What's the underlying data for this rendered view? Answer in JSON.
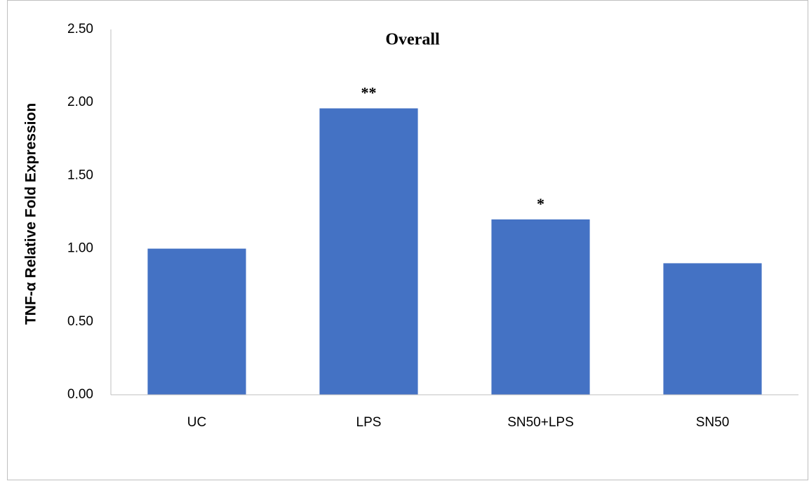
{
  "chart_data": {
    "type": "bar",
    "title": "Overall",
    "y_label": "TNF-α Relative Fold Expression",
    "categories": [
      "UC",
      "LPS",
      "SN50+LPS",
      "SN50"
    ],
    "values": [
      1.0,
      1.96,
      1.2,
      0.9
    ],
    "color": "#4472c4",
    "ylim": [
      0,
      2.5
    ],
    "yticks": [
      {
        "value": 0,
        "label": "0.00"
      },
      {
        "value": 0.5,
        "label": "0.50"
      },
      {
        "value": 1,
        "label": "1.00"
      },
      {
        "value": 1.5,
        "label": "1.50"
      },
      {
        "value": 2,
        "label": "2.00"
      },
      {
        "value": 2.5,
        "label": "2.50"
      }
    ],
    "grid": false,
    "annotations": [
      {
        "text": "**",
        "x": "LPS"
      },
      {
        "text": "*",
        "x": "SN50+LPS"
      }
    ]
  }
}
